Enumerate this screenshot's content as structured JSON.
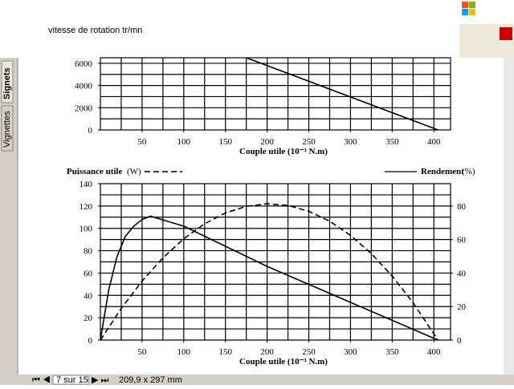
{
  "ui": {
    "header_text": "vitesse de rotation tr/mn",
    "side_tabs": [
      "Signets",
      "Vignettes"
    ],
    "page_indicator": "7 sur 15",
    "page_size": "209,9 x 297 mm"
  },
  "chart_data": [
    {
      "type": "line",
      "xlabel": "Couple utile (10⁻³ N.m)",
      "xlim": [
        0,
        420
      ],
      "xticks": [
        50,
        100,
        150,
        200,
        250,
        300,
        350,
        400
      ],
      "ylim": [
        0,
        6500
      ],
      "yticks": [
        0,
        2000,
        4000,
        6000
      ],
      "x_grid_step": 25,
      "y_grid_step": 1000,
      "series": [
        {
          "color": "#000000",
          "dash": false,
          "x": [
            175,
            405
          ],
          "values": [
            6500,
            0
          ]
        }
      ]
    },
    {
      "type": "line",
      "xlabel": "Couple utile (10⁻³ N.m)",
      "xlim": [
        0,
        420
      ],
      "xticks": [
        50,
        100,
        150,
        200,
        250,
        300,
        350,
        400
      ],
      "ylim": [
        0,
        140
      ],
      "yticks": [
        0,
        20,
        40,
        60,
        80,
        100,
        120,
        140
      ],
      "y2lim": [
        0,
        93.4
      ],
      "y2ticks": [
        0,
        20,
        40,
        60,
        80
      ],
      "x_grid_step": 25,
      "y_grid_step": 10,
      "series": [
        {
          "name": "Puissance utile",
          "unit": "(W)",
          "color": "#000000",
          "dash": true,
          "x": [
            0,
            25,
            50,
            75,
            100,
            125,
            150,
            175,
            200,
            225,
            250,
            275,
            300,
            325,
            350,
            375,
            405
          ],
          "values": [
            0,
            28.3,
            52.8,
            73.6,
            90.7,
            104.1,
            113.8,
            119.7,
            122,
            120.5,
            115.3,
            106.4,
            93.7,
            77.4,
            57.3,
            33.5,
            0
          ]
        },
        {
          "name": "Rendement",
          "unit": "(%)",
          "color": "#000000",
          "dash": false,
          "axis": "y2",
          "x": [
            0,
            10,
            20,
            30,
            40,
            50,
            60,
            100,
            200,
            300,
            405
          ],
          "values": [
            0,
            30,
            50,
            62,
            68,
            72,
            74,
            68,
            44,
            22.5,
            0
          ]
        }
      ]
    }
  ]
}
